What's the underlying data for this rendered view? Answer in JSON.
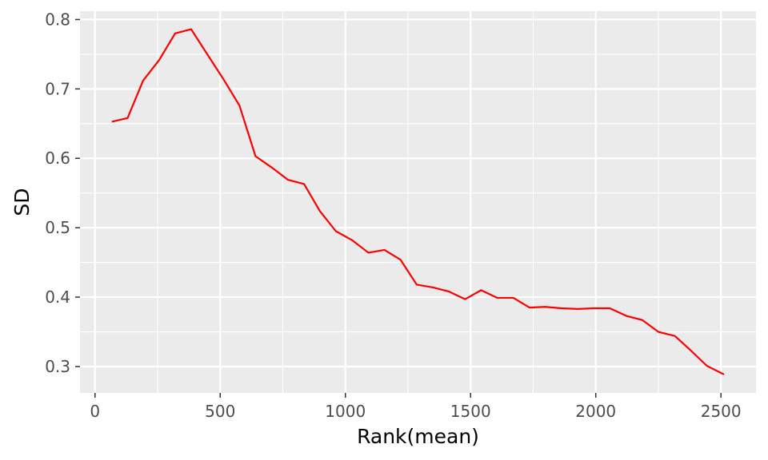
{
  "chart_data": {
    "type": "line",
    "title": "",
    "xlabel": "Rank(mean)",
    "ylabel": "SD",
    "xlim": [
      -60,
      2640
    ],
    "ylim": [
      0.262,
      0.812
    ],
    "x_ticks": [
      0,
      500,
      1000,
      1500,
      2000,
      2500
    ],
    "y_ticks": [
      0.3,
      0.4,
      0.5,
      0.6,
      0.7,
      0.8
    ],
    "x_tick_labels": [
      "0",
      "500",
      "1000",
      "1500",
      "2000",
      "2500"
    ],
    "y_tick_labels": [
      "0.3",
      "0.4",
      "0.5",
      "0.6",
      "0.7",
      "0.8"
    ],
    "grid": true,
    "series": [
      {
        "name": "SD",
        "color": "#ff0000",
        "x": [
          70,
          130,
          192,
          257,
          320,
          384,
          450,
          513,
          577,
          641,
          705,
          771,
          835,
          898,
          962,
          1027,
          1092,
          1156,
          1220,
          1285,
          1350,
          1414,
          1478,
          1542,
          1606,
          1671,
          1735,
          1798,
          1863,
          1928,
          1992,
          2056,
          2122,
          2186,
          2250,
          2316,
          2380,
          2444,
          2510
        ],
        "values": [
          0.653,
          0.658,
          0.712,
          0.742,
          0.78,
          0.786,
          0.749,
          0.714,
          0.676,
          0.603,
          0.587,
          0.569,
          0.563,
          0.524,
          0.495,
          0.482,
          0.464,
          0.468,
          0.454,
          0.418,
          0.414,
          0.408,
          0.397,
          0.41,
          0.399,
          0.399,
          0.385,
          0.386,
          0.384,
          0.383,
          0.384,
          0.384,
          0.373,
          0.367,
          0.35,
          0.344,
          0.323,
          0.301,
          0.289
        ]
      }
    ]
  }
}
